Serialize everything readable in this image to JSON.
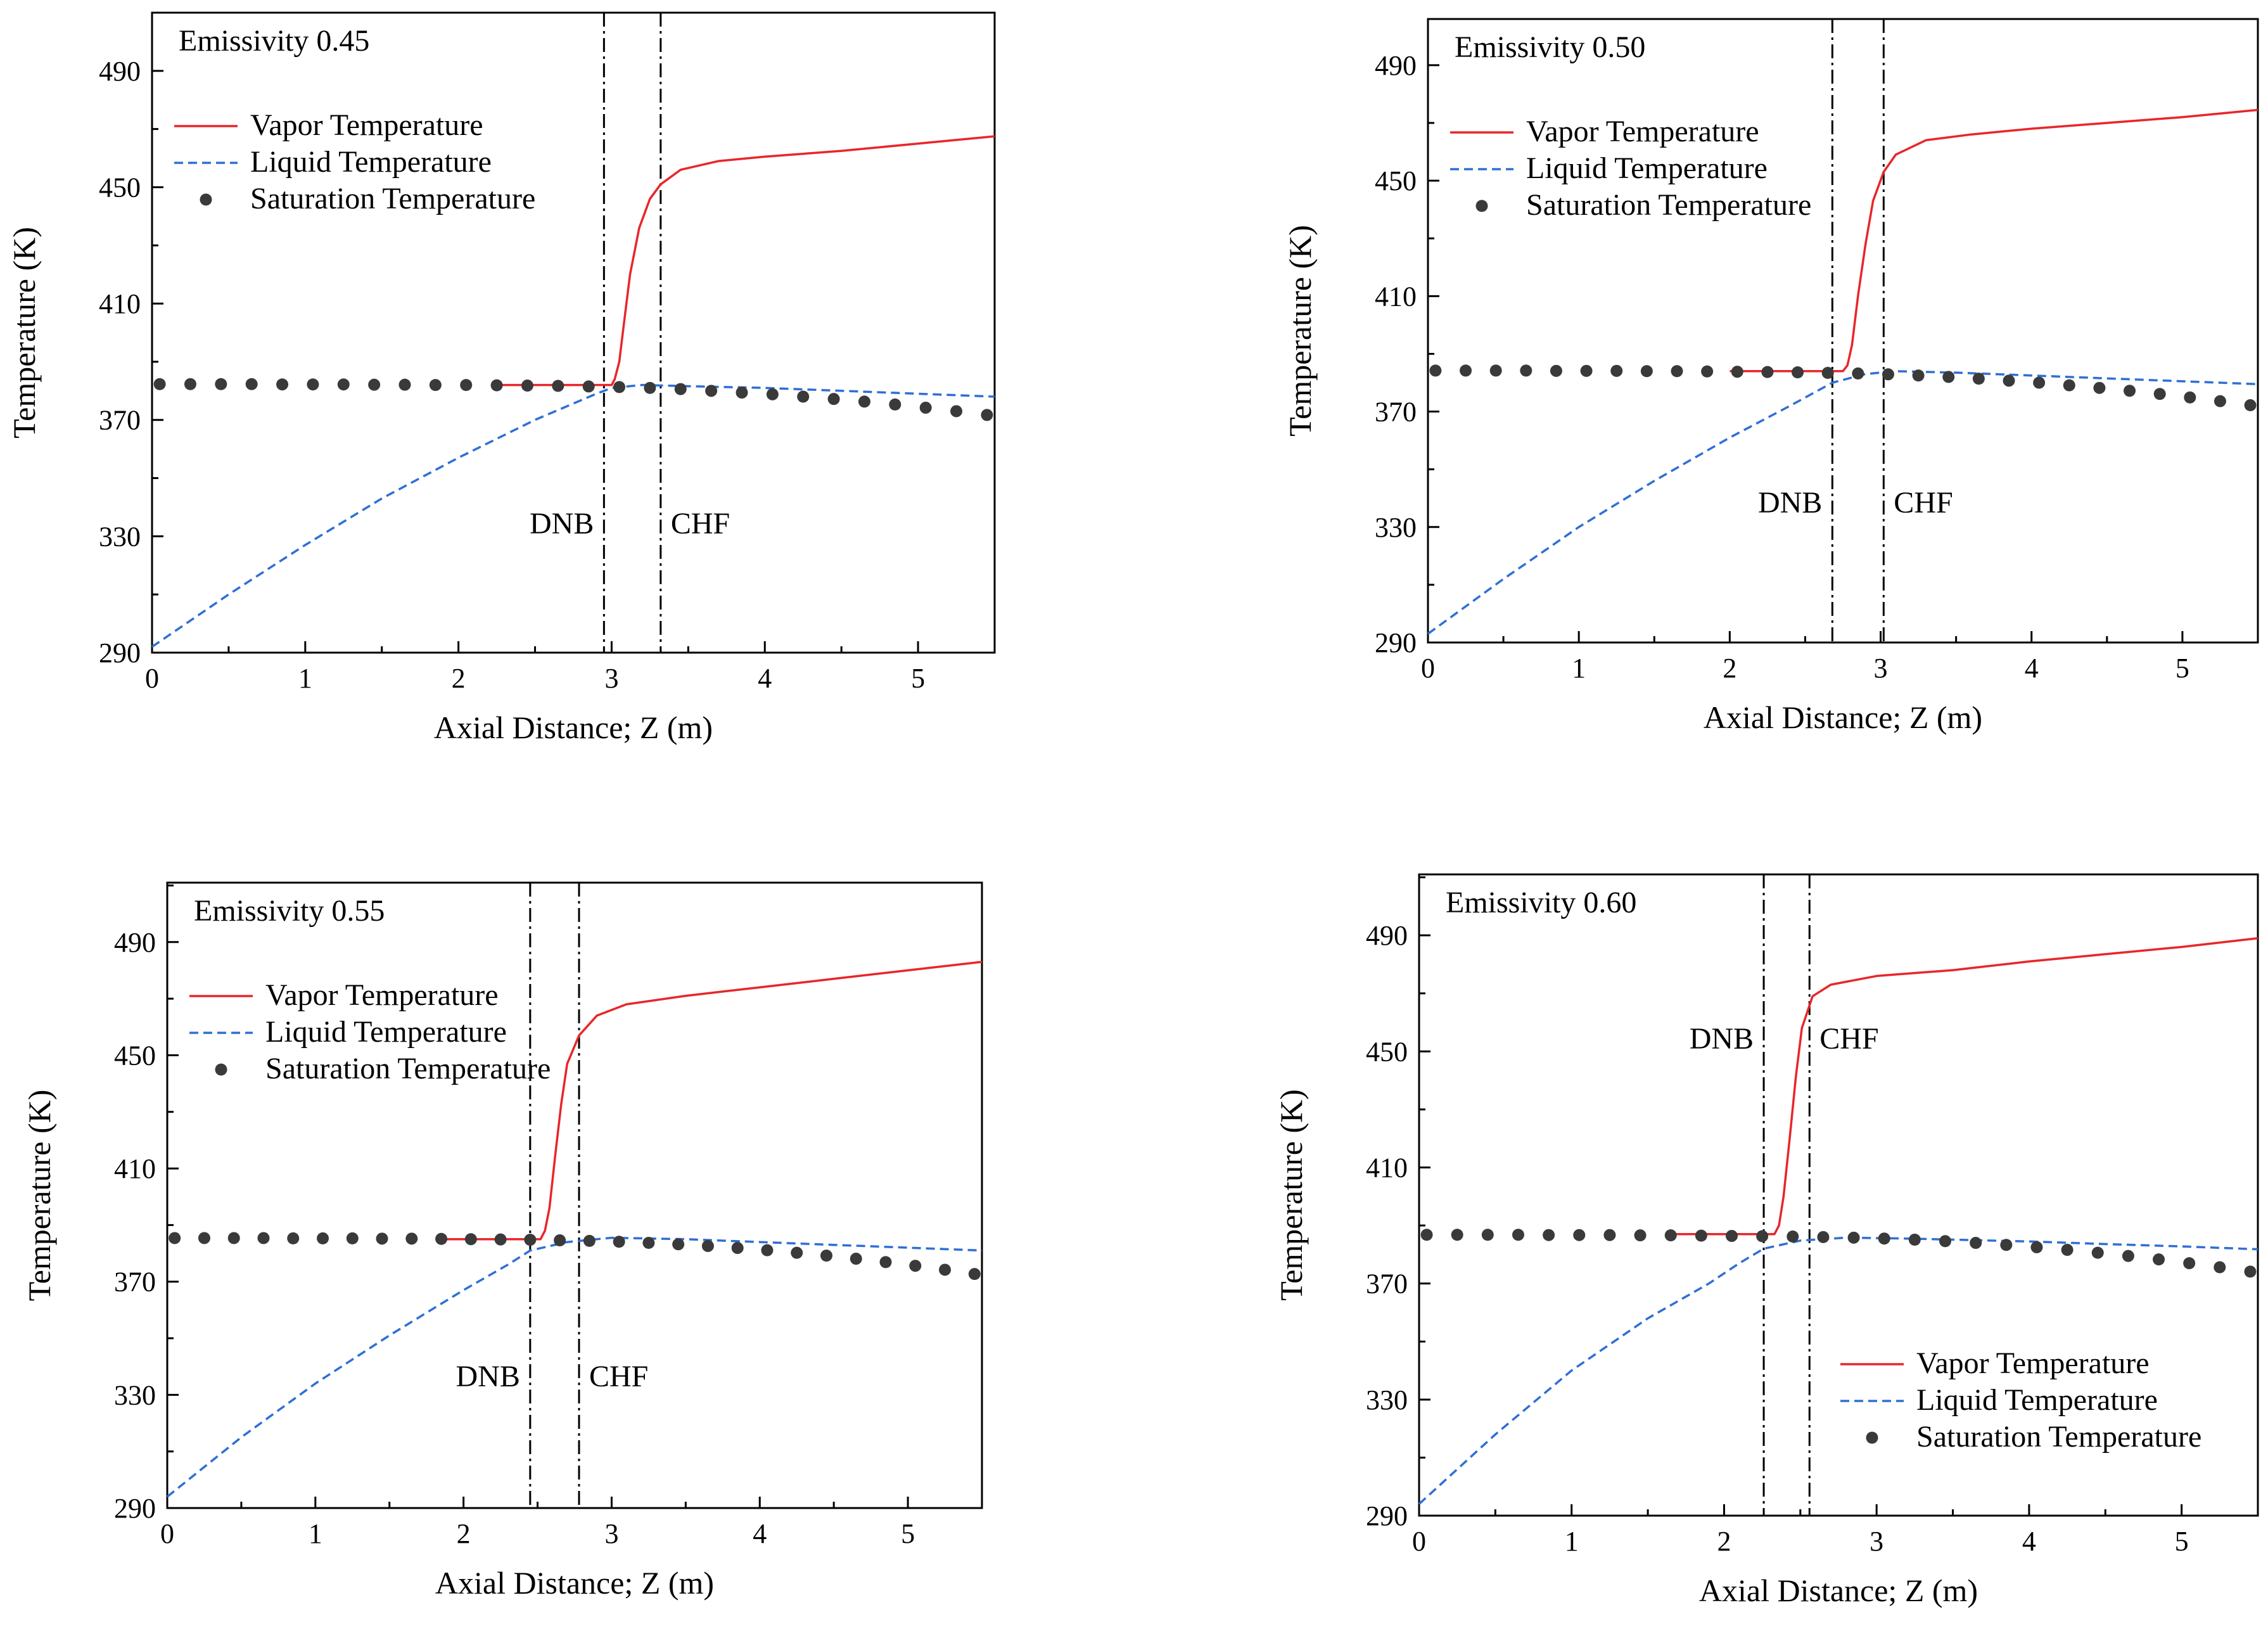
{
  "colors": {
    "vapor": "#e8262a",
    "liquid": "#2f6fd6",
    "saturation": "#3a3a3a",
    "axis": "#000000"
  },
  "chart_data": [
    {
      "type": "line",
      "panel_label": "Emissivity 0.45",
      "xlabel": "Axial Distance; Z (m)",
      "ylabel": "Temperature (K)",
      "xlim": [
        0,
        5.5
      ],
      "ylim": [
        290,
        510
      ],
      "xticks": [
        "0",
        "1",
        "2",
        "3",
        "4",
        "5"
      ],
      "yticks": [
        "290",
        "330",
        "370",
        "410",
        "450",
        "490"
      ],
      "legend_position": "top-left",
      "legend": [
        "Vapor Temperature",
        "Liquid Temperature",
        "Saturation Temperature"
      ],
      "vlines": [
        {
          "x": 2.95,
          "label": "DNB",
          "label_side": "left"
        },
        {
          "x": 3.32,
          "label": "CHF",
          "label_side": "right"
        }
      ],
      "annotation_y": 331,
      "series": [
        {
          "name": "Vapor Temperature",
          "style": "solid",
          "x": [
            2.25,
            2.5,
            2.8,
            3.0,
            3.02,
            3.05,
            3.08,
            3.12,
            3.18,
            3.25,
            3.32,
            3.45,
            3.7,
            4.0,
            4.5,
            5.0,
            5.5
          ],
          "y": [
            382,
            382,
            382,
            382,
            384,
            390,
            403,
            420,
            436,
            446,
            451,
            456,
            459,
            460.5,
            462.5,
            465,
            467.5
          ]
        },
        {
          "name": "Liquid Temperature",
          "style": "dashed",
          "x": [
            0,
            0.5,
            1.0,
            1.5,
            2.0,
            2.5,
            2.9,
            3.0,
            3.2,
            3.5,
            4.0,
            4.5,
            5.0,
            5.5
          ],
          "y": [
            292,
            310,
            327,
            343,
            357,
            370,
            379,
            381,
            382,
            381.6,
            381,
            380,
            379,
            378
          ]
        },
        {
          "name": "Saturation Temperature",
          "style": "dots",
          "x": [
            0.05,
            0.25,
            0.45,
            0.65,
            0.85,
            1.05,
            1.25,
            1.45,
            1.65,
            1.85,
            2.05,
            2.25,
            2.45,
            2.65,
            2.85,
            3.05,
            3.25,
            3.45,
            3.65,
            3.85,
            4.05,
            4.25,
            4.45,
            4.65,
            4.85,
            5.05,
            5.25,
            5.45
          ],
          "y": [
            382.3,
            382.3,
            382.3,
            382.3,
            382.2,
            382.2,
            382.2,
            382.1,
            382.1,
            382.0,
            382.0,
            381.9,
            381.8,
            381.7,
            381.5,
            381.3,
            381,
            380.6,
            380,
            379.4,
            378.8,
            378,
            377.2,
            376.3,
            375.3,
            374.2,
            373,
            371.7
          ]
        }
      ]
    },
    {
      "type": "line",
      "panel_label": "Emissivity 0.50",
      "xlabel": "Axial Distance; Z (m)",
      "ylabel": "Temperature (K)",
      "xlim": [
        0,
        5.5
      ],
      "ylim": [
        290,
        506
      ],
      "xticks": [
        "0",
        "1",
        "2",
        "3",
        "4",
        "5"
      ],
      "yticks": [
        "290",
        "330",
        "370",
        "410",
        "450",
        "490"
      ],
      "legend_position": "top-left",
      "legend": [
        "Vapor Temperature",
        "Liquid Temperature",
        "Saturation Temperature"
      ],
      "vlines": [
        {
          "x": 2.68,
          "label": "DNB",
          "label_side": "left"
        },
        {
          "x": 3.02,
          "label": "CHF",
          "label_side": "right"
        }
      ],
      "annotation_y": 335,
      "series": [
        {
          "name": "Vapor Temperature",
          "style": "solid",
          "x": [
            2.0,
            2.3,
            2.6,
            2.75,
            2.78,
            2.81,
            2.85,
            2.9,
            2.95,
            3.02,
            3.1,
            3.3,
            3.6,
            4.0,
            4.5,
            5.0,
            5.5
          ],
          "y": [
            384,
            384,
            384,
            384,
            386,
            393,
            410,
            428,
            443,
            453,
            459,
            464,
            466,
            468,
            470,
            472,
            474.5
          ]
        },
        {
          "name": "Liquid Temperature",
          "style": "dashed",
          "x": [
            0,
            0.5,
            1.0,
            1.5,
            2.0,
            2.4,
            2.68,
            2.9,
            3.1,
            3.5,
            4.0,
            4.5,
            5.0,
            5.5
          ],
          "y": [
            293,
            312,
            330,
            346,
            361,
            372,
            380,
            383,
            384,
            383.5,
            382.5,
            381.5,
            380.5,
            379.5
          ]
        },
        {
          "name": "Saturation Temperature",
          "style": "dots",
          "x": [
            0.05,
            0.25,
            0.45,
            0.65,
            0.85,
            1.05,
            1.25,
            1.45,
            1.65,
            1.85,
            2.05,
            2.25,
            2.45,
            2.65,
            2.85,
            3.05,
            3.25,
            3.45,
            3.65,
            3.85,
            4.05,
            4.25,
            4.45,
            4.65,
            4.85,
            5.05,
            5.25,
            5.45
          ],
          "y": [
            384.2,
            384.2,
            384.2,
            384.2,
            384.1,
            384.1,
            384.1,
            384.0,
            384.0,
            383.9,
            383.8,
            383.7,
            383.6,
            383.4,
            383.2,
            382.9,
            382.5,
            382,
            381.4,
            380.7,
            380,
            379.1,
            378.2,
            377.2,
            376.1,
            374.9,
            373.6,
            372.2
          ]
        }
      ]
    },
    {
      "type": "line",
      "panel_label": "Emissivity 0.55",
      "xlabel": "Axial Distance; Z (m)",
      "ylabel": "Temperature (K)",
      "xlim": [
        0,
        5.5
      ],
      "ylim": [
        290,
        511
      ],
      "xticks": [
        "0",
        "1",
        "2",
        "3",
        "4",
        "5"
      ],
      "yticks": [
        "290",
        "330",
        "370",
        "410",
        "450",
        "490"
      ],
      "legend_position": "top-left",
      "legend": [
        "Vapor Temperature",
        "Liquid Temperature",
        "Saturation Temperature"
      ],
      "vlines": [
        {
          "x": 2.45,
          "label": "DNB",
          "label_side": "left"
        },
        {
          "x": 2.78,
          "label": "CHF",
          "label_side": "right"
        }
      ],
      "annotation_y": 333,
      "series": [
        {
          "name": "Vapor Temperature",
          "style": "solid",
          "x": [
            1.85,
            2.1,
            2.4,
            2.52,
            2.55,
            2.58,
            2.62,
            2.66,
            2.7,
            2.78,
            2.9,
            3.1,
            3.5,
            4.0,
            4.5,
            5.0,
            5.5
          ],
          "y": [
            385,
            385,
            385,
            385,
            388,
            396,
            415,
            433,
            447,
            457,
            464,
            468,
            471,
            474,
            477,
            480,
            483
          ]
        },
        {
          "name": "Liquid Temperature",
          "style": "dashed",
          "x": [
            0,
            0.5,
            1.0,
            1.5,
            2.0,
            2.3,
            2.45,
            2.7,
            3.0,
            3.5,
            4.0,
            4.5,
            5.0,
            5.5
          ],
          "y": [
            294,
            315,
            334,
            351,
            367,
            376,
            381,
            384,
            385.5,
            385,
            384,
            383,
            382,
            381
          ]
        },
        {
          "name": "Saturation Temperature",
          "style": "dots",
          "x": [
            0.05,
            0.25,
            0.45,
            0.65,
            0.85,
            1.05,
            1.25,
            1.45,
            1.65,
            1.85,
            2.05,
            2.25,
            2.45,
            2.65,
            2.85,
            3.05,
            3.25,
            3.45,
            3.65,
            3.85,
            4.05,
            4.25,
            4.45,
            4.65,
            4.85,
            5.05,
            5.25,
            5.45
          ],
          "y": [
            385.4,
            385.4,
            385.4,
            385.4,
            385.3,
            385.3,
            385.3,
            385.2,
            385.2,
            385.1,
            385.0,
            384.9,
            384.8,
            384.6,
            384.4,
            384.1,
            383.7,
            383.2,
            382.6,
            381.9,
            381.1,
            380.2,
            379.2,
            378.1,
            376.9,
            375.6,
            374.2,
            372.7
          ]
        }
      ]
    },
    {
      "type": "line",
      "panel_label": "Emissivity 0.60",
      "xlabel": "Axial Distance; Z (m)",
      "ylabel": "Temperature (K)",
      "xlim": [
        0,
        5.5
      ],
      "ylim": [
        290,
        511
      ],
      "xticks": [
        "0",
        "1",
        "2",
        "3",
        "4",
        "5"
      ],
      "yticks": [
        "290",
        "330",
        "370",
        "410",
        "450",
        "490"
      ],
      "legend_position": "bottom-right",
      "legend": [
        "Vapor Temperature",
        "Liquid Temperature",
        "Saturation Temperature"
      ],
      "vlines": [
        {
          "x": 2.26,
          "label": "DNB",
          "label_side": "left"
        },
        {
          "x": 2.56,
          "label": "CHF",
          "label_side": "right"
        }
      ],
      "annotation_y": 451,
      "series": [
        {
          "name": "Vapor Temperature",
          "style": "solid",
          "x": [
            1.65,
            1.9,
            2.2,
            2.33,
            2.36,
            2.39,
            2.43,
            2.47,
            2.51,
            2.58,
            2.7,
            3.0,
            3.5,
            4.0,
            4.5,
            5.0,
            5.5
          ],
          "y": [
            387,
            387,
            387,
            387,
            390,
            400,
            420,
            441,
            458,
            469,
            473,
            476,
            478,
            481,
            483.5,
            486,
            489
          ]
        },
        {
          "name": "Liquid Temperature",
          "style": "dashed",
          "x": [
            0,
            0.5,
            1.0,
            1.5,
            1.9,
            2.1,
            2.26,
            2.5,
            2.8,
            3.2,
            3.6,
            4.0,
            4.5,
            5.0,
            5.5
          ],
          "y": [
            294,
            318,
            340,
            358,
            370,
            377,
            382,
            384.8,
            385.8,
            385.5,
            385,
            384.5,
            383.6,
            382.8,
            381.8
          ]
        },
        {
          "name": "Saturation Temperature",
          "style": "dots",
          "x": [
            0.05,
            0.25,
            0.45,
            0.65,
            0.85,
            1.05,
            1.25,
            1.45,
            1.65,
            1.85,
            2.05,
            2.25,
            2.45,
            2.65,
            2.85,
            3.05,
            3.25,
            3.45,
            3.65,
            3.85,
            4.05,
            4.25,
            4.45,
            4.65,
            4.85,
            5.05,
            5.25,
            5.45
          ],
          "y": [
            386.8,
            386.8,
            386.8,
            386.8,
            386.7,
            386.7,
            386.7,
            386.6,
            386.6,
            386.5,
            386.4,
            386.3,
            386.2,
            386.0,
            385.8,
            385.5,
            385.1,
            384.6,
            384.0,
            383.3,
            382.5,
            381.6,
            380.6,
            379.5,
            378.3,
            377.0,
            375.6,
            374.1
          ]
        }
      ]
    }
  ]
}
